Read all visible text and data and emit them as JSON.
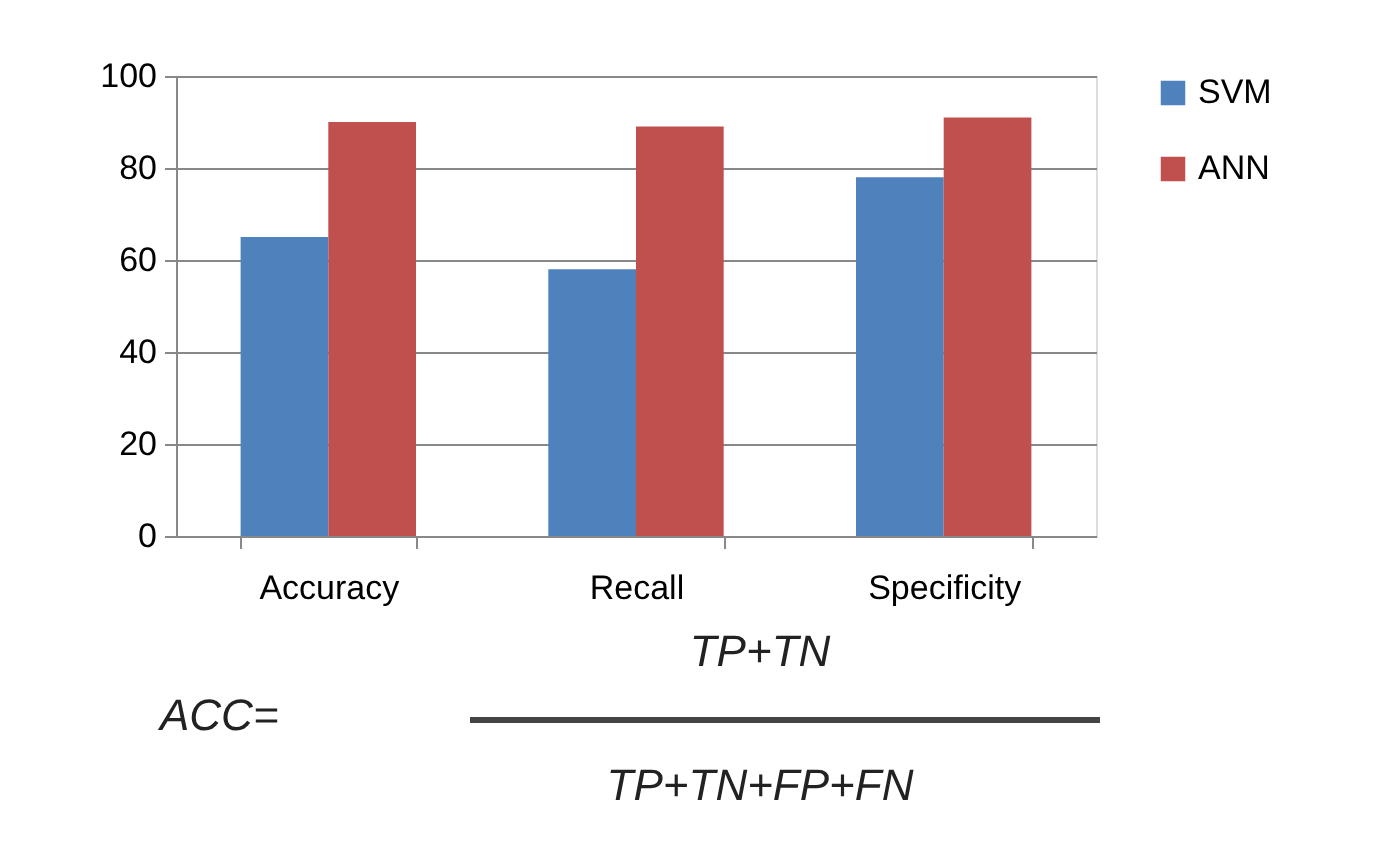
{
  "chart_data": {
    "type": "bar",
    "categories": [
      "Accuracy",
      "Recall",
      "Specificity"
    ],
    "series": [
      {
        "name": "SVM",
        "color": "#4f81bd",
        "values": [
          65,
          58,
          78
        ]
      },
      {
        "name": "ANN",
        "color": "#c0504d",
        "values": [
          90,
          89,
          91
        ]
      }
    ],
    "ylim": [
      0,
      100
    ],
    "yticks": [
      0,
      20,
      40,
      60,
      80,
      100
    ],
    "grid": "y",
    "legend": "right",
    "annotations": [
      "ACC=",
      "TP+TN",
      "TP+TN+FP+FN"
    ]
  }
}
